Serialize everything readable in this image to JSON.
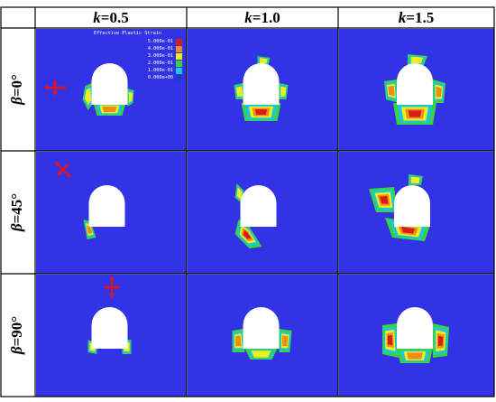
{
  "columns": [
    {
      "var": "k",
      "label": "=0.5"
    },
    {
      "var": "k",
      "label": "=1.0"
    },
    {
      "var": "k",
      "label": "=1.5"
    }
  ],
  "rows": [
    {
      "var": "β",
      "label": "=0°"
    },
    {
      "var": "β",
      "label": "=45°"
    },
    {
      "var": "β",
      "label": "=90°"
    }
  ],
  "legend": {
    "title": "Effective Plastic Strain",
    "items": [
      {
        "value": "5.000e-01",
        "color": "#d41c1c"
      },
      {
        "value": "4.000e-01",
        "color": "#f08c18"
      },
      {
        "value": "3.000e-01",
        "color": "#f0f018"
      },
      {
        "value": "2.000e-01",
        "color": "#3cd23c"
      },
      {
        "value": "1.000e-01",
        "color": "#18c8dc"
      },
      {
        "value": "0.000e+00",
        "color": "#1e3ccd"
      }
    ]
  },
  "colors": {
    "background": "#3232e6",
    "tunnel": "#ffffff",
    "arrow": "#e0141e"
  }
}
